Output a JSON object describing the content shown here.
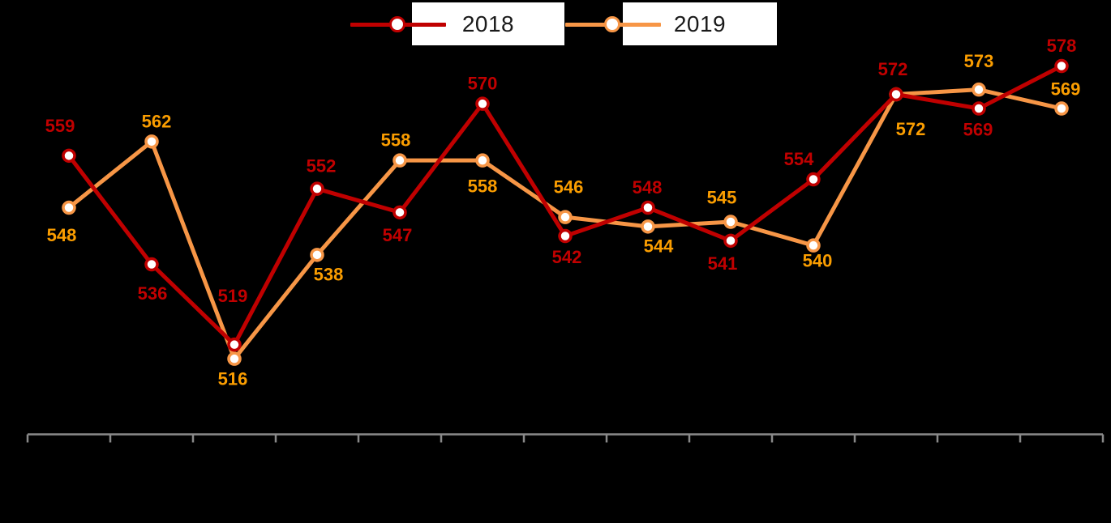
{
  "page": {
    "background_color": "#000000"
  },
  "legend": {
    "items": [
      {
        "label": "2018",
        "color": "#C00000"
      },
      {
        "label": "2019",
        "color": "#F79646"
      }
    ],
    "box_color": "#FFFFFF",
    "text_color": "#1A1A1A"
  },
  "chart_data": {
    "type": "line",
    "title": "",
    "n_points": 13,
    "categories_visible": false,
    "x_axis": {
      "labels_visible": false,
      "tick_count": 14,
      "color": "#898989"
    },
    "y_axis": {
      "visible": false,
      "min": 500,
      "max": 592
    },
    "legend_position": "top",
    "grid": false,
    "series": [
      {
        "name": "2018",
        "line_color": "#C00000",
        "label_color": "#C00000",
        "marker_fill": "#FFFFFF",
        "values": [
          559,
          536,
          519,
          552,
          547,
          570,
          542,
          548,
          541,
          554,
          572,
          569,
          578
        ],
        "label_dx": [
          -11,
          1,
          -2,
          5,
          -3,
          0,
          2,
          -1,
          -10,
          -18,
          -4,
          -1,
          0
        ],
        "label_dy": [
          -37,
          36,
          -60,
          -28,
          28,
          -25,
          26,
          -25,
          28,
          -25,
          -31,
          26,
          -25
        ]
      },
      {
        "name": "2019",
        "line_color": "#F79646",
        "label_color": "#FA9D00",
        "marker_fill": "#FFFFFF",
        "values": [
          548,
          562,
          516,
          538,
          558,
          558,
          546,
          544,
          545,
          540,
          572,
          573,
          569
        ],
        "label_dx": [
          -9,
          6,
          -2,
          14,
          -5,
          0,
          4,
          13,
          -11,
          5,
          18,
          0,
          5
        ],
        "label_dy": [
          34,
          -25,
          25,
          24,
          -25,
          32,
          -37,
          24,
          -30,
          19,
          43,
          -35,
          -24
        ]
      }
    ],
    "z_order_top_series": "2018"
  }
}
